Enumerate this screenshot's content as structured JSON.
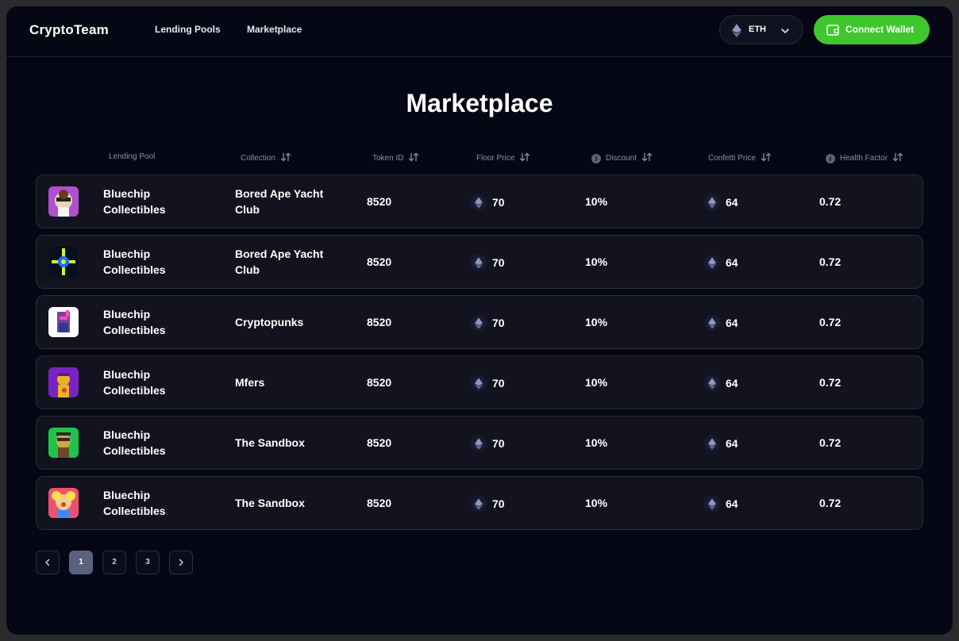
{
  "header": {
    "brand": "CryptoTeam",
    "nav": [
      "Lending Pools",
      "Marketplace"
    ],
    "currency": "ETH",
    "connect_label": "Connect Wallet",
    "accent_color": "#3fc72d"
  },
  "page_title": "Marketplace",
  "table": {
    "columns": [
      "Lending Pool",
      "Collection",
      "Token ID",
      "Floor Price",
      "Discount",
      "Confetti Price",
      "Health Factor"
    ],
    "rows": [
      {
        "pool": "Bluechip Collectibles",
        "collection": "Bored Ape Yacht Club",
        "token_id": "8520",
        "floor": "70",
        "discount": "10%",
        "confetti": "64",
        "health": "0.72",
        "thumb": "ape-purple-avatar"
      },
      {
        "pool": "Bluechip Collectibles",
        "collection": "Bored Ape Yacht Club",
        "token_id": "8520",
        "floor": "70",
        "discount": "10%",
        "confetti": "64",
        "health": "0.72",
        "thumb": "neon-figure-avatar"
      },
      {
        "pool": "Bluechip Collectibles",
        "collection": "Cryptopunks",
        "token_id": "8520",
        "floor": "70",
        "discount": "10%",
        "confetti": "64",
        "health": "0.72",
        "thumb": "punk-avatar"
      },
      {
        "pool": "Bluechip Collectibles",
        "collection": "Mfers",
        "token_id": "8520",
        "floor": "70",
        "discount": "10%",
        "confetti": "64",
        "health": "0.72",
        "thumb": "mfer-avatar"
      },
      {
        "pool": "Bluechip Collectibles",
        "collection": "The Sandbox",
        "token_id": "8520",
        "floor": "70",
        "discount": "10%",
        "confetti": "64",
        "health": "0.72",
        "thumb": "green-ape-avatar"
      },
      {
        "pool": "Bluechip Collectibles",
        "collection": "The Sandbox",
        "token_id": "8520",
        "floor": "70",
        "discount": "10%",
        "confetti": "64",
        "health": "0.72",
        "thumb": "clown-ape-avatar"
      }
    ]
  },
  "pagination": {
    "pages": [
      "1",
      "2",
      "3"
    ],
    "current": "1"
  }
}
